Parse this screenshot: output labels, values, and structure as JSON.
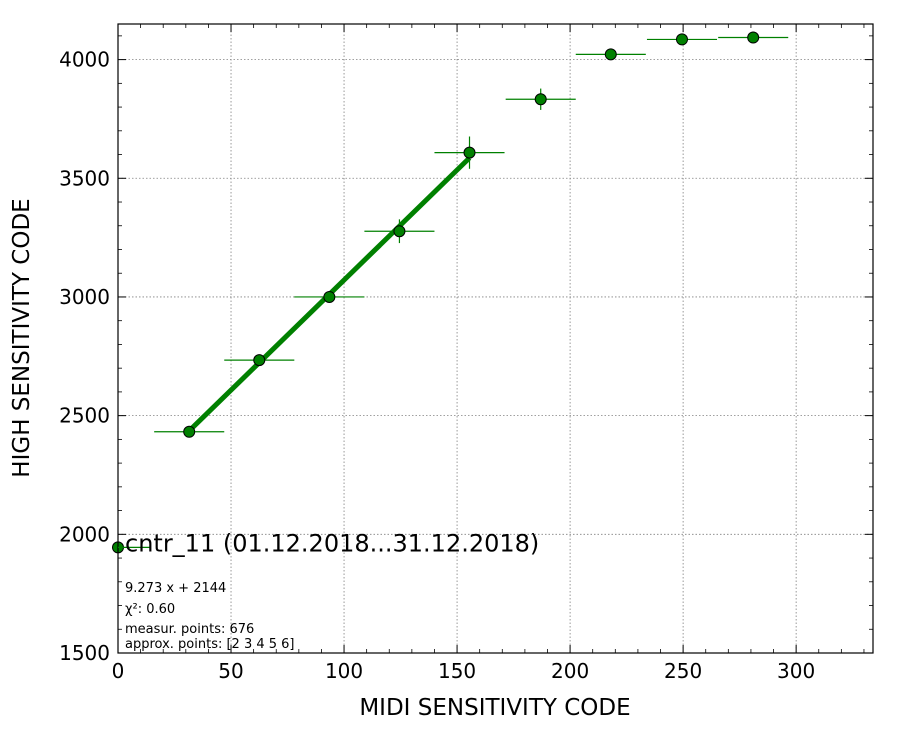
{
  "chart_data": {
    "type": "scatter",
    "xlabel": "MIDI SENSITIVITY CODE",
    "ylabel": "HIGH SENSITIVITY CODE",
    "xlim": [
      0,
      334
    ],
    "ylim": [
      1500,
      4150
    ],
    "xticks": [
      0,
      50,
      100,
      150,
      200,
      250,
      300
    ],
    "yticks": [
      1500,
      2000,
      2500,
      3000,
      3500,
      4000
    ],
    "grid": true,
    "colors": {
      "marker": "#008000",
      "line": "#008000",
      "grid": "#808080"
    },
    "series": [
      {
        "name": "cntr_11 (01.12.2018...31.12.2018)",
        "points": [
          {
            "x": 0,
            "y": 1945,
            "xerr": 0,
            "yerr": 0
          },
          {
            "x": 31.5,
            "y": 2432,
            "xerr": 15.5,
            "yerr": 0
          },
          {
            "x": 62.5,
            "y": 2734,
            "xerr": 15.5,
            "yerr": 0
          },
          {
            "x": 93.5,
            "y": 3000,
            "xerr": 15.5,
            "yerr": 20
          },
          {
            "x": 124.5,
            "y": 3277,
            "xerr": 15.5,
            "yerr": 50
          },
          {
            "x": 155.5,
            "y": 3608,
            "xerr": 15.5,
            "yerr": 68
          },
          {
            "x": 187,
            "y": 3833,
            "xerr": 15.5,
            "yerr": 45
          },
          {
            "x": 218,
            "y": 4022,
            "xerr": 15.5,
            "yerr": 0
          },
          {
            "x": 249.5,
            "y": 4085,
            "xerr": 15.5,
            "yerr": 0
          },
          {
            "x": 281,
            "y": 4093,
            "xerr": 15.5,
            "yerr": 0
          }
        ]
      }
    ],
    "fit": {
      "slope": 9.273,
      "intercept": 2144,
      "x_range": [
        31.5,
        155.5
      ]
    },
    "annotations": [
      "9.273 x + 2144",
      "χ²: 0.60",
      "measur. points: 676",
      "approx. points: [2 3 4 5 6]"
    ]
  }
}
